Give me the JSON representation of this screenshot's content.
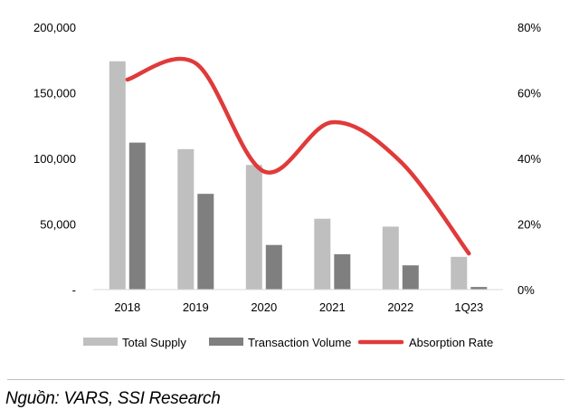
{
  "chart_data": {
    "type": "bar",
    "categories": [
      "2018",
      "2019",
      "2020",
      "2021",
      "2022",
      "1Q23"
    ],
    "series": [
      {
        "name": "Total Supply",
        "type": "bar",
        "axis": "left",
        "color": "#bfbfbf",
        "values": [
          174000,
          107000,
          95000,
          54000,
          48000,
          25000
        ]
      },
      {
        "name": "Transaction Volume",
        "type": "bar",
        "axis": "left",
        "color": "#7f7f7f",
        "values": [
          112000,
          73000,
          34000,
          27000,
          18500,
          2000
        ]
      },
      {
        "name": "Absorption Rate",
        "type": "line",
        "axis": "right",
        "color": "#e03a3a",
        "smooth": true,
        "values": [
          0.64,
          0.69,
          0.36,
          0.51,
          0.39,
          0.11
        ]
      }
    ],
    "y_left": {
      "ylim": [
        0,
        200000
      ],
      "ticks": [
        "-",
        "50,000",
        "100,000",
        "150,000",
        "200,000"
      ]
    },
    "y_right": {
      "ylim": [
        0,
        0.8
      ],
      "ticks": [
        "0%",
        "20%",
        "40%",
        "60%",
        "80%"
      ]
    },
    "grid": false,
    "legend_position": "bottom"
  },
  "source_text": "Nguồn: VARS, SSI Research"
}
